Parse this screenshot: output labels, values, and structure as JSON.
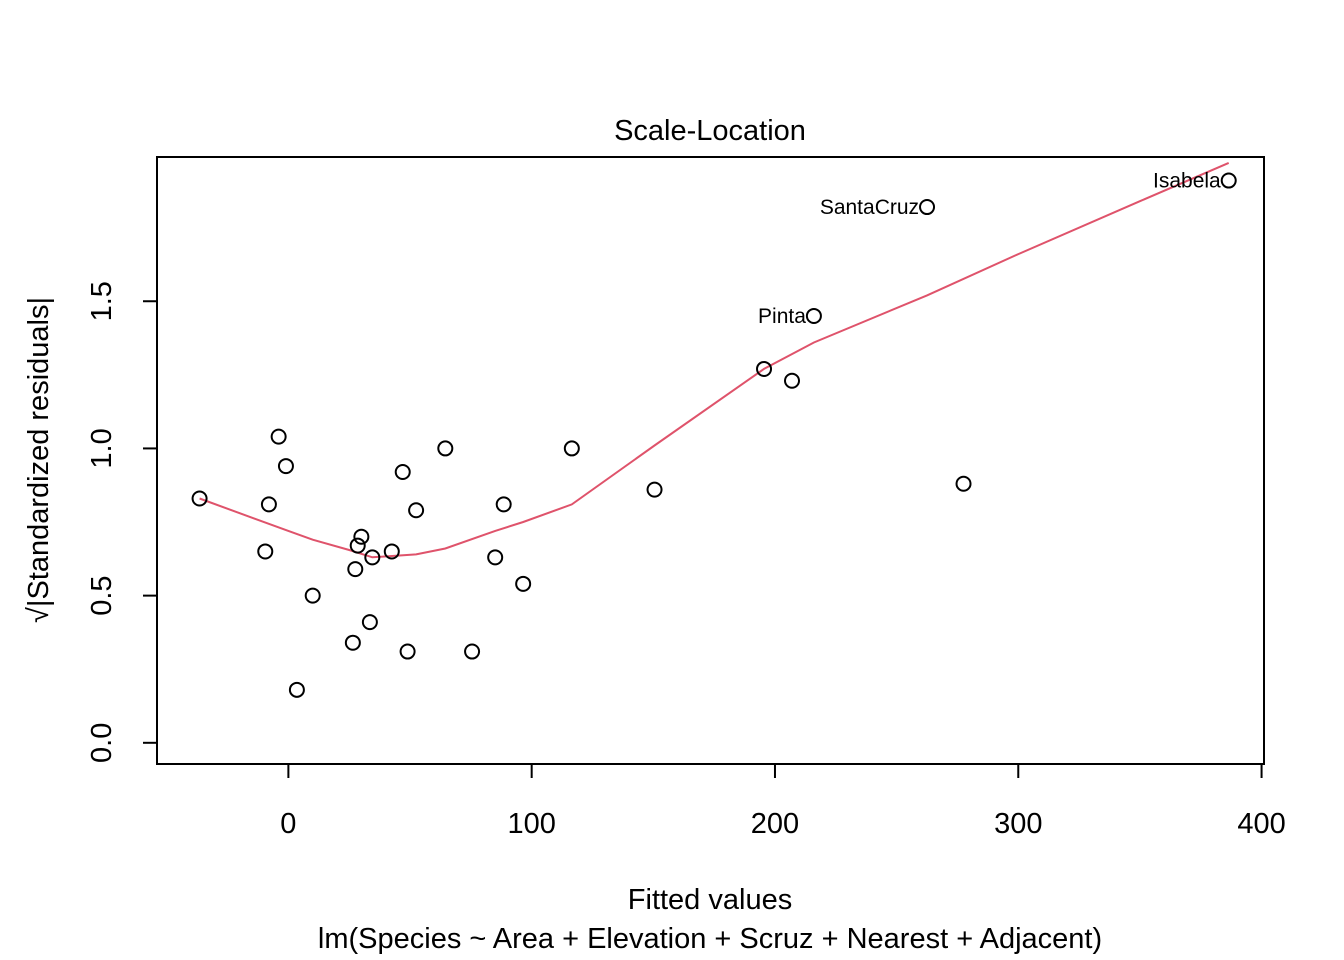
{
  "chart_data": {
    "type": "scatter",
    "title": "Scale-Location",
    "xlabel": "Fitted values",
    "subtitle": "lm(Species ~ Area + Elevation + Scruz + Nearest + Adjacent)",
    "ylabel": "√|Standardized residuals|",
    "xlim": [
      -54,
      401
    ],
    "ylim": [
      -0.072,
      1.99
    ],
    "x_ticks": [
      0,
      100,
      200,
      300,
      400
    ],
    "x_tick_labels": [
      "0",
      "100",
      "200",
      "300",
      "400"
    ],
    "y_ticks": [
      0.0,
      0.5,
      1.0,
      1.5
    ],
    "y_tick_labels": [
      "0.0",
      "0.5",
      "1.0",
      "1.5"
    ],
    "grid": false,
    "colors": {
      "points": "#000000",
      "smoother": "#DF536B",
      "frame": "#000000"
    },
    "points": [
      {
        "x": -36.5,
        "y": 0.83
      },
      {
        "x": -8.0,
        "y": 0.81
      },
      {
        "x": -9.5,
        "y": 0.65
      },
      {
        "x": -4.0,
        "y": 1.04
      },
      {
        "x": -1.0,
        "y": 0.94
      },
      {
        "x": 3.5,
        "y": 0.18
      },
      {
        "x": 10.0,
        "y": 0.5
      },
      {
        "x": 26.5,
        "y": 0.34
      },
      {
        "x": 27.5,
        "y": 0.59
      },
      {
        "x": 28.5,
        "y": 0.67
      },
      {
        "x": 30.0,
        "y": 0.7
      },
      {
        "x": 33.5,
        "y": 0.41
      },
      {
        "x": 34.5,
        "y": 0.63
      },
      {
        "x": 42.5,
        "y": 0.65
      },
      {
        "x": 47.0,
        "y": 0.92
      },
      {
        "x": 49.0,
        "y": 0.31
      },
      {
        "x": 52.5,
        "y": 0.79
      },
      {
        "x": 64.5,
        "y": 1.0
      },
      {
        "x": 75.5,
        "y": 0.31
      },
      {
        "x": 85.0,
        "y": 0.63
      },
      {
        "x": 88.5,
        "y": 0.81
      },
      {
        "x": 96.5,
        "y": 0.54
      },
      {
        "x": 116.5,
        "y": 1.0
      },
      {
        "x": 150.5,
        "y": 0.86
      },
      {
        "x": 195.5,
        "y": 1.27
      },
      {
        "x": 207.0,
        "y": 1.23
      },
      {
        "x": 216.0,
        "y": 1.45,
        "label": "Pinta"
      },
      {
        "x": 262.5,
        "y": 1.82,
        "label": "SantaCruz"
      },
      {
        "x": 277.5,
        "y": 0.88
      },
      {
        "x": 386.5,
        "y": 1.91,
        "label": "Isabela"
      }
    ],
    "smoother": {
      "x": [
        -36.5,
        -20,
        0,
        10,
        25,
        34.5,
        52.5,
        64.5,
        85,
        96.5,
        116.5,
        150.5,
        195.5,
        216,
        262.5,
        300,
        350,
        386.5
      ],
      "y": [
        0.83,
        0.78,
        0.72,
        0.69,
        0.655,
        0.63,
        0.64,
        0.66,
        0.72,
        0.75,
        0.81,
        1.01,
        1.27,
        1.36,
        1.52,
        1.66,
        1.84,
        1.97
      ]
    }
  }
}
